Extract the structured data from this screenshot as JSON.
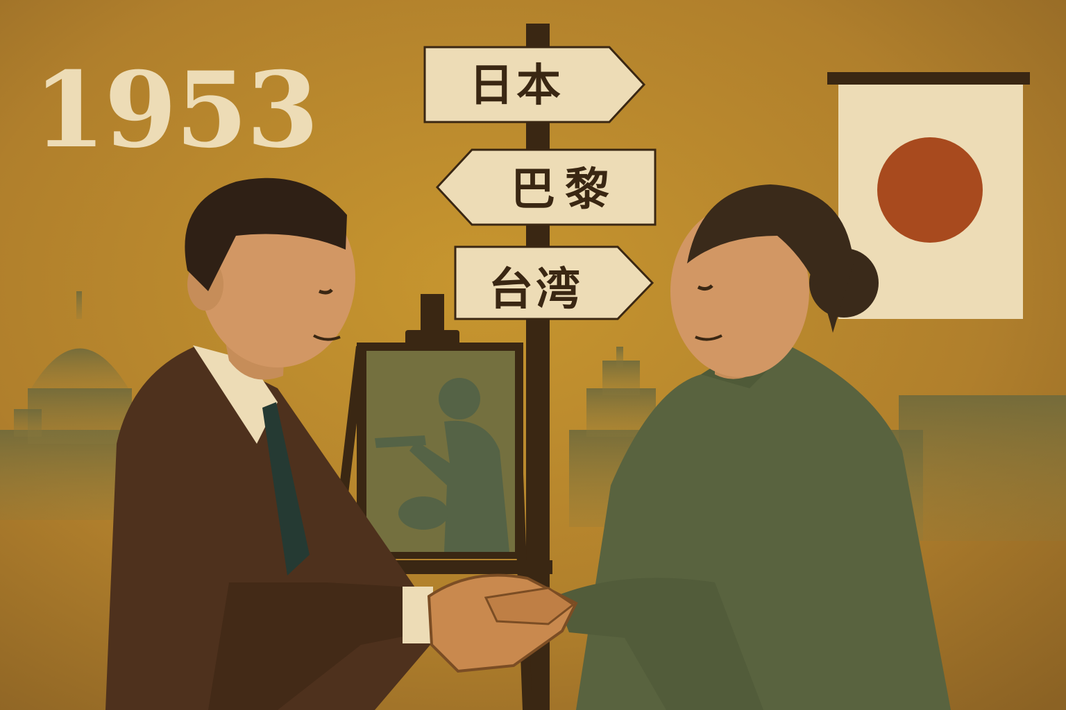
{
  "year": "1953",
  "signpost": {
    "signs": [
      {
        "label": "日本",
        "direction": "right"
      },
      {
        "label": "巴黎",
        "direction": "left"
      },
      {
        "label": "台湾",
        "direction": "right"
      }
    ]
  },
  "palette": {
    "background": "#b07f2c",
    "ink": "#3a2713",
    "paper": "#eddcb6",
    "suit": "#4e311d",
    "dress": "#59633f",
    "flag_sun": "#a84a1e"
  }
}
